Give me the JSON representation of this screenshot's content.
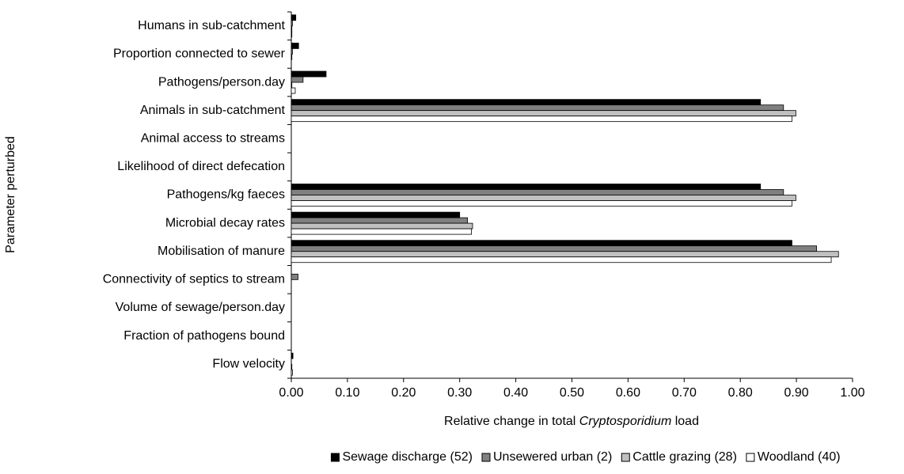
{
  "chart_data": {
    "type": "barh",
    "y_label": "Parameter perturbed",
    "x_label_parts": [
      "Relative change in total ",
      "Cryptosporidium",
      " load"
    ],
    "categories": [
      "Humans in sub-catchment",
      "Proportion connected to sewer",
      "Pathogens/person.day",
      "Animals in sub-catchment",
      "Animal access to streams",
      "Likelihood of direct defecation",
      "Pathogens/kg faeces",
      "Microbial decay rates",
      "Mobilisation of manure",
      "Connectivity of septics to stream",
      "Volume of sewage/person.day",
      "Fraction of pathogens bound",
      "Flow velocity"
    ],
    "series": [
      {
        "name": "Sewage discharge (52)",
        "color": "#000000",
        "values": [
          0.008,
          0.013,
          0.062,
          0.836,
          0,
          0,
          0.836,
          0.3,
          0.892,
          0,
          0,
          0,
          0.003
        ]
      },
      {
        "name": "Unsewered urban (2)",
        "color": "#808080",
        "values": [
          0.002,
          0.002,
          0.021,
          0.877,
          0,
          0,
          0.877,
          0.314,
          0.936,
          0.012,
          0,
          0,
          0
        ]
      },
      {
        "name": "Cattle grazing (28)",
        "color": "#c0c0c0",
        "values": [
          0.001,
          0.001,
          0.001,
          0.899,
          0,
          0,
          0.899,
          0.323,
          0.975,
          0,
          0,
          0,
          0.001
        ]
      },
      {
        "name": "Woodland (40)",
        "color": "#ffffff",
        "values": [
          0.001,
          0,
          0.007,
          0.892,
          0,
          0,
          0.892,
          0.321,
          0.962,
          0,
          0,
          0,
          0.002
        ]
      }
    ],
    "xlim": [
      0,
      1
    ],
    "xticks": [
      {
        "value": 0,
        "label": "0.00"
      },
      {
        "value": 0.1,
        "label": "0.10"
      },
      {
        "value": 0.2,
        "label": "0.20"
      },
      {
        "value": 0.3,
        "label": "0.30"
      },
      {
        "value": 0.4,
        "label": "0.40"
      },
      {
        "value": 0.5,
        "label": "0.50"
      },
      {
        "value": 0.6,
        "label": "0.60"
      },
      {
        "value": 0.7,
        "label": "0.70"
      },
      {
        "value": 0.8,
        "label": "0.80"
      },
      {
        "value": 0.9,
        "label": "0.90"
      },
      {
        "value": 1,
        "label": "1.00"
      }
    ],
    "legend": "bottom"
  }
}
